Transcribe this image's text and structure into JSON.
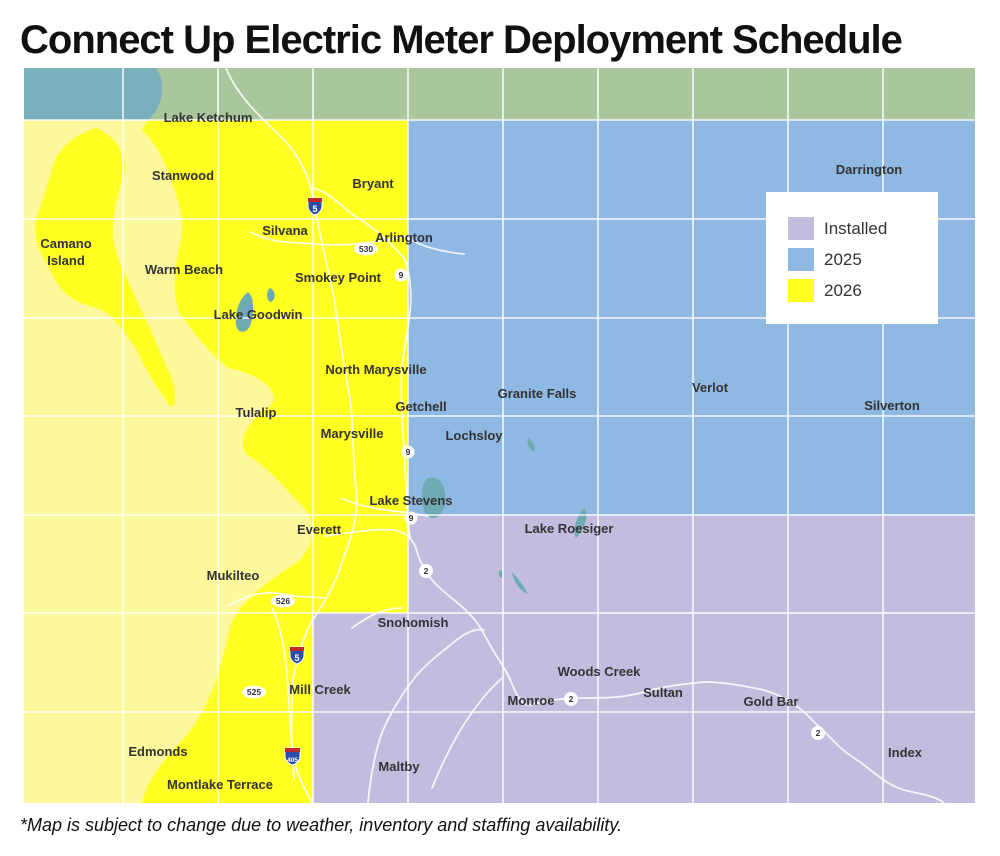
{
  "title": "Connect Up Electric Meter Deployment Schedule",
  "footnote": "*Map is subject to change due to weather, inventory and staffing availability.",
  "colors": {
    "installed": "#c3bcdf",
    "y2025": "#8fb8e2",
    "y2026": "#ffff22",
    "outside": "#fdf89c",
    "north": "#a9c69d",
    "water": "#7ab0bd",
    "lake": "#6eaab3",
    "grid": "#ffffff"
  },
  "legend": [
    {
      "label": "Installed",
      "color": "#c3bcdf"
    },
    {
      "label": "2025",
      "color": "#8fb8e2"
    },
    {
      "label": "2026",
      "color": "#ffff22"
    }
  ],
  "places": {
    "lake_ketchum": "Lake Ketchum",
    "stanwood": "Stanwood",
    "bryant": "Bryant",
    "darrington": "Darrington",
    "camano_island_1": "Camano",
    "camano_island_2": "Island",
    "silvana": "Silvana",
    "arlington": "Arlington",
    "warm_beach": "Warm Beach",
    "smokey_point": "Smokey Point",
    "lake_goodwin": "Lake Goodwin",
    "north_marysville": "North Marysville",
    "granite_falls": "Granite Falls",
    "verlot": "Verlot",
    "getchell": "Getchell",
    "silverton": "Silverton",
    "tulalip": "Tulalip",
    "marysville": "Marysville",
    "lochsloy": "Lochsloy",
    "lake_stevens": "Lake Stevens",
    "lake_roesiger": "Lake Roesiger",
    "everett": "Everett",
    "mukilteo": "Mukilteo",
    "snohomish": "Snohomish",
    "woods_creek": "Woods Creek",
    "sultan": "Sultan",
    "monroe": "Monroe",
    "gold_bar": "Gold Bar",
    "mill_creek": "Mill Creek",
    "edmonds": "Edmonds",
    "montlake_terrace": "Montlake Terrace",
    "maltby": "Maltby",
    "index": "Index"
  },
  "route_shields": {
    "i5_north": "5",
    "sr530": "530",
    "sr9_north": "9",
    "sr9_mid": "9",
    "sr9_south": "9",
    "us2_west": "2",
    "sr526": "526",
    "i5_south": "5",
    "sr525": "525",
    "us2_monroe": "2",
    "us2_east": "2",
    "i405": "405"
  }
}
